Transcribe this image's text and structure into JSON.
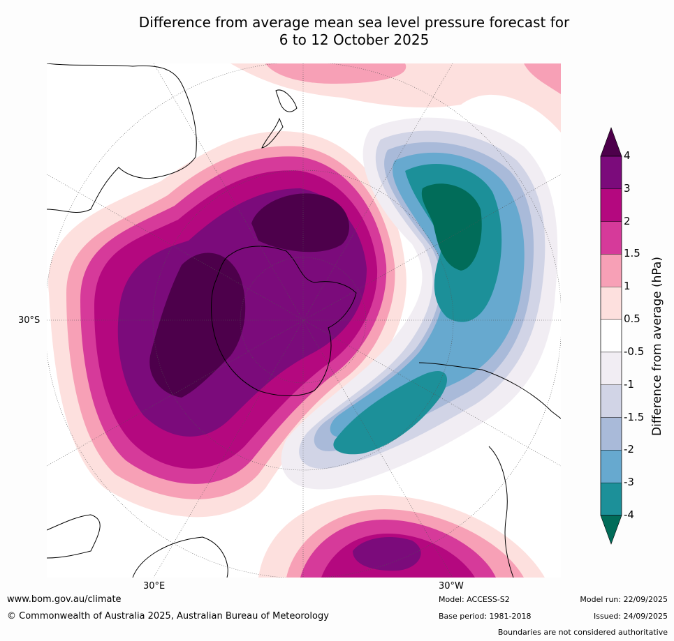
{
  "title": {
    "line1": "Difference from average mean sea level pressure forecast for",
    "line2": "6 to 12 October 2025"
  },
  "map": {
    "lat_label": "30°S",
    "lon_labels": [
      "30°E",
      "30°W"
    ]
  },
  "colorbar": {
    "title": "Difference from average (hPa)",
    "labels": [
      "4",
      "3",
      "2",
      "1.5",
      "1",
      "0.5",
      "-0.5",
      "-1",
      "-1.5",
      "-2",
      "-3",
      "-4"
    ],
    "colors": [
      "#7b0b7b",
      "#b4087f",
      "#d63a9a",
      "#f7a0b6",
      "#fde0de",
      "#ffffff",
      "#f1edf3",
      "#d1d4e6",
      "#a9bad9",
      "#67a9cf",
      "#1c9099",
      "#016c59"
    ],
    "over_color": "#4d004b",
    "under_color": "#016c59"
  },
  "chart_data": {
    "type": "heatmap",
    "title": "Difference from average mean sea level pressure forecast for 6 to 12 October 2025",
    "projection": "south polar stereographic",
    "units": "hPa",
    "levels": [
      -4,
      -3,
      -2,
      -1.5,
      -1,
      -0.5,
      0.5,
      1,
      1.5,
      2,
      3,
      4
    ],
    "extend": "both",
    "features": [
      {
        "name": "positive anomaly centre over Antarctica",
        "max": ">4"
      },
      {
        "name": "positive anomaly south-west of Australia / New Zealand",
        "max": ">4"
      },
      {
        "name": "negative anomaly South Pacific",
        "min": "<-4"
      },
      {
        "name": "negative anomaly Drake Passage / South Atlantic",
        "min": "<-4"
      },
      {
        "name": "positive anomaly South Atlantic near Africa",
        "max": "3 to 4"
      }
    ]
  },
  "footer": {
    "url": "www.bom.gov.au/climate",
    "copyright": "© Commonwealth of Australia 2025, Australian Bureau of Meteorology",
    "model": "Model: ACCESS-S2",
    "base_period": "Base period: 1981-2018",
    "model_run": "Model run: 22/09/2025",
    "issued": "Issued: 24/09/2025",
    "disclaimer": "Boundaries are not considered authoritative"
  }
}
